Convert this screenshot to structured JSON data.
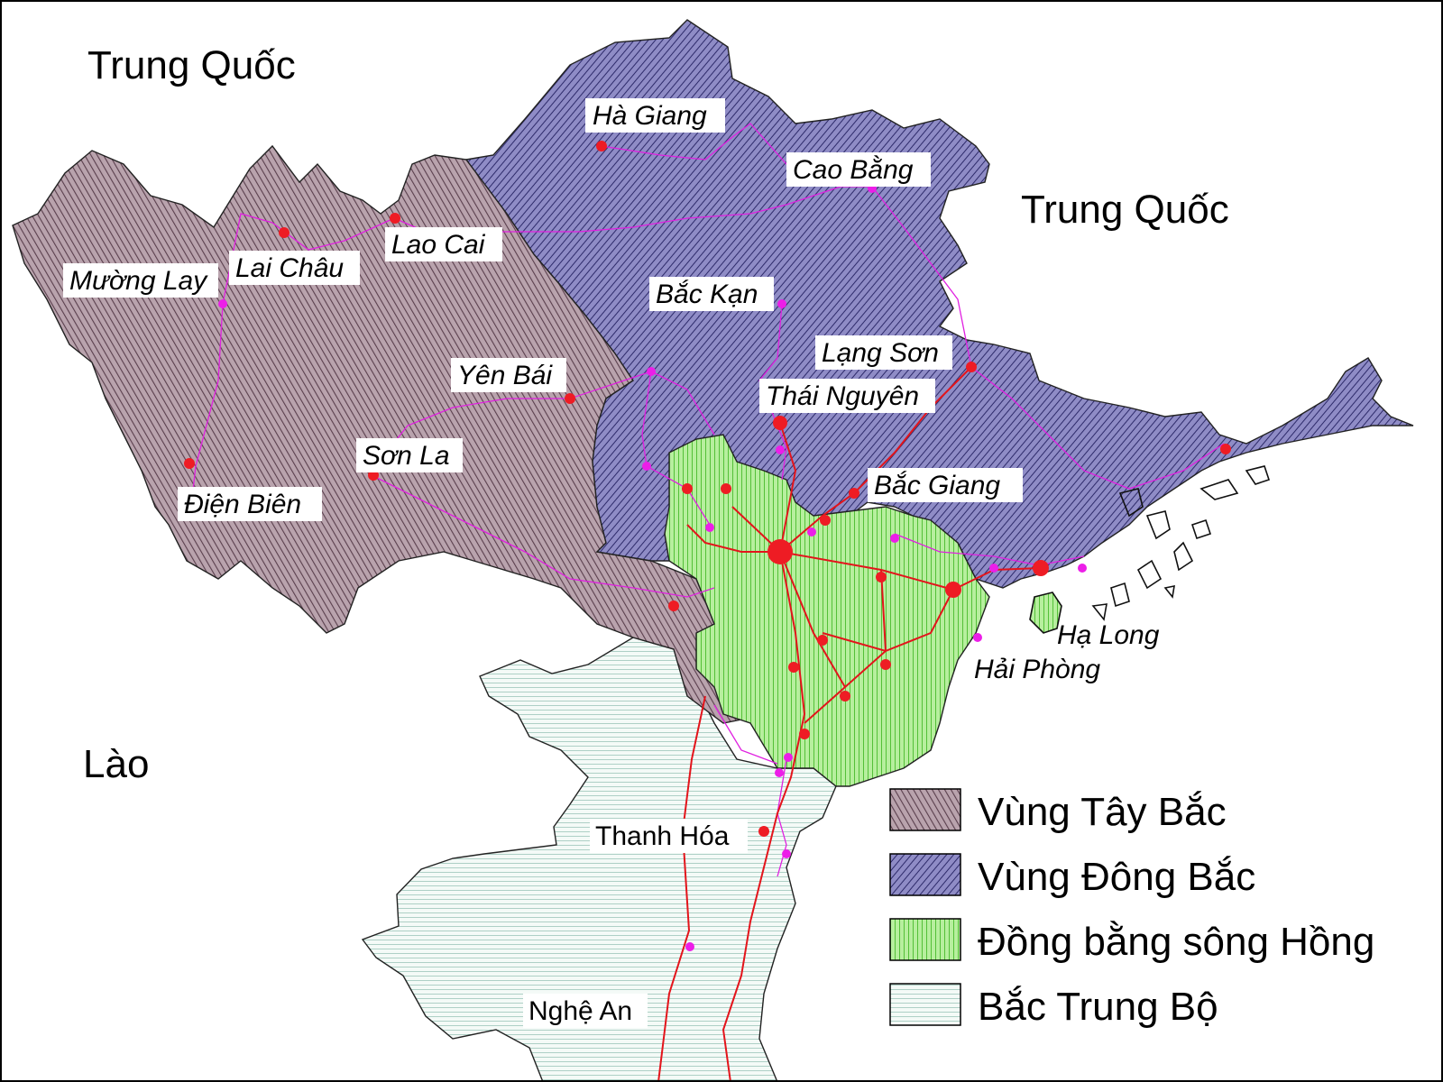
{
  "countries": {
    "china_west": "Trung Quốc",
    "china_east": "Trung Quốc",
    "laos": "Lào"
  },
  "cities": [
    {
      "id": "ha-giang",
      "name": "Hà Giang",
      "italic": true
    },
    {
      "id": "cao-bang",
      "name": "Cao Bằng",
      "italic": true
    },
    {
      "id": "lao-cai",
      "name": "Lao Cai",
      "italic": true
    },
    {
      "id": "lai-chau",
      "name": "Lai Châu",
      "italic": true
    },
    {
      "id": "muong-lay",
      "name": "Mường Lay",
      "italic": true
    },
    {
      "id": "bac-kan",
      "name": "Bắc Kạn",
      "italic": true
    },
    {
      "id": "lang-son",
      "name": "Lạng Sơn",
      "italic": true
    },
    {
      "id": "yen-bai",
      "name": "Yên Bái",
      "italic": true
    },
    {
      "id": "thai-nguyen",
      "name": "Thái Nguyên",
      "italic": true
    },
    {
      "id": "son-la",
      "name": "Sơn La",
      "italic": true
    },
    {
      "id": "dien-bien",
      "name": "Điện Biên",
      "italic": true
    },
    {
      "id": "bac-giang",
      "name": "Bắc Giang",
      "italic": true
    },
    {
      "id": "ha-long",
      "name": "Hạ Long",
      "italic": true
    },
    {
      "id": "hai-phong",
      "name": "Hải Phòng",
      "italic": true
    },
    {
      "id": "thanh-hoa",
      "name": "Thanh Hóa",
      "italic": false
    },
    {
      "id": "nghe-an",
      "name": "Nghệ An",
      "italic": false
    }
  ],
  "legend": [
    {
      "label": "Vùng Tây Bắc",
      "pattern": "hatch-taybac"
    },
    {
      "label": "Vùng Đông Bắc",
      "pattern": "hatch-dongbac"
    },
    {
      "label": "Đồng bằng sông Hồng",
      "pattern": "hatch-dbsh"
    },
    {
      "label": "Bắc Trung Bộ",
      "pattern": "hatch-btb"
    }
  ],
  "colors": {
    "tay_bac_fill": "#b9a3ad",
    "tay_bac_hatch": "#5a3f4d",
    "dong_bac_fill": "#8f8cc6",
    "dong_bac_hatch": "#2d2a6a",
    "dbsh_fill": "#b7ef9e",
    "dbsh_hatch": "#3bb51f",
    "btb_fill": "#f4faf7",
    "btb_hatch": "#7fb5a6",
    "road": "#e3141b",
    "provincial_road": "#e020e0",
    "city_major": "#ee1c24",
    "city_minor": "#ec1ee8"
  }
}
